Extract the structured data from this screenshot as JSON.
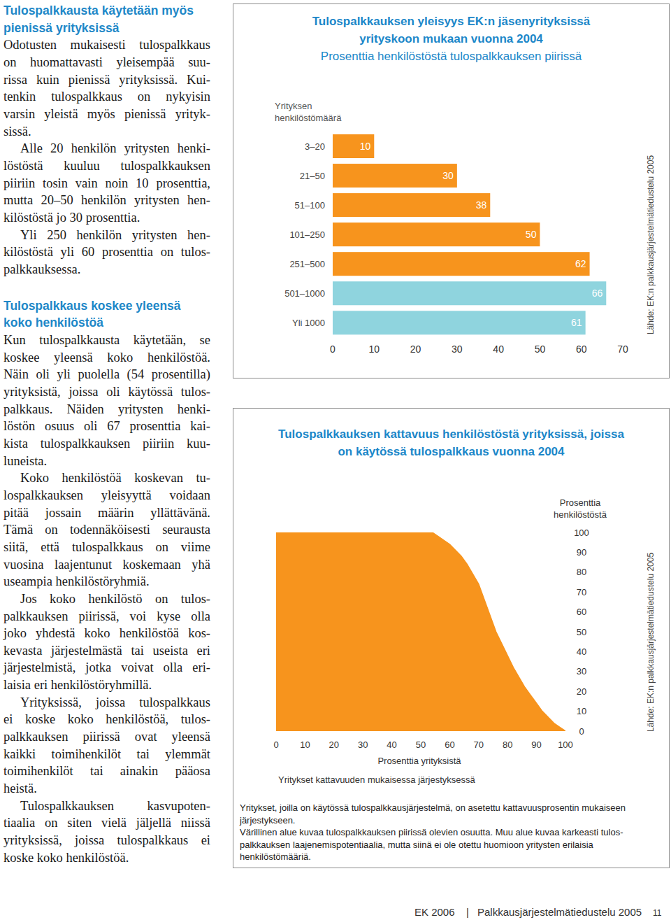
{
  "article": {
    "sections": [
      {
        "heading": [
          "Tulospalkkausta käytetään myös",
          "pienissä yrityksissä"
        ],
        "paragraphs": [
          {
            "lines": [
              "Odotusten mukaisesti tulospalkkaus",
              "on huomattavasti yleisempää suu-",
              "rissa kuin pienissä yrityksissä. Kui-",
              "tenkin tulospalkkaus on nykyisin",
              "varsin yleistä myös pienissä yrityk-",
              "sissä."
            ]
          },
          {
            "lines": [
              "Alle 20 henkilön yritysten henki-",
              "löstöstä kuuluu tulospalkkauksen",
              "piiriin tosin vain noin 10 prosenttia,",
              "mutta 20–50 henkilön yritysten hen-",
              "kilöstöstä jo 30 prosenttia."
            ]
          },
          {
            "lines": [
              "Yli 250 henkilön yritysten hen-",
              "kilöstöstä yli 60 prosenttia on tulos-",
              "palkkauksessa."
            ]
          }
        ]
      },
      {
        "heading": [
          "Tulospalkkaus koskee yleensä",
          "koko henkilöstöä"
        ],
        "paragraphs": [
          {
            "lines": [
              "Kun tulospalkkausta käytetään, se",
              "koskee yleensä koko henkilöstöä.",
              "Näin oli yli puolella (54 prosentilla)",
              "yrityksistä, joissa oli käytössä tulos-",
              "palkkaus. Näiden yritysten henki-",
              "löstön osuus oli 67 prosenttia kai-",
              "kista tulospalkkauksen piiriin kuu-",
              "luneista."
            ]
          },
          {
            "lines": [
              "Koko henkilöstöä koskevan tu-",
              "lospalkkauksen yleisyyttä voidaan",
              "pitää jossain määrin yllättävänä.",
              "Tämä on todennäköisesti seurausta",
              "siitä, että tulospalkkaus on viime",
              "vuosina laajentunut koskemaan yhä",
              "useampia henkilöstöryhmiä."
            ]
          },
          {
            "lines": [
              "Jos koko henkilöstö on tulos-",
              "palkkauksen piirissä, voi kyse olla",
              "joko yhdestä koko henkilöstöä kos-",
              "kevasta järjestelmästä tai useista eri",
              "järjestelmistä, jotka voivat olla eri-",
              "laisia eri henkilöstöryhmillä."
            ]
          },
          {
            "lines": [
              "Yrityksissä, joissa tulospalkkaus",
              "ei koske koko henkilöstöä, tulos-",
              "palkkauksen piirissä ovat yleensä",
              "kaikki toimihenkilöt tai ylemmät",
              "toimihenkilöt tai ainakin pääosa",
              "heistä."
            ]
          },
          {
            "lines": [
              "Tulospalkkauksen kasvupoten-",
              "tiaalia on siten vielä jäljellä niissä",
              "yrityksissä, joissa tulospalkkaus ei",
              "koske koko henkilöstöä."
            ]
          }
        ]
      }
    ]
  },
  "chart_data": [
    {
      "type": "bar",
      "orientation": "horizontal",
      "title": "Tulospalkkauksen yleisyys EK:n jäsenyrityksissä yrityskoon mukaan vuonna 2004",
      "subtitle": "Prosenttia henkilöstöstä tulospalkkauksen piirissä",
      "ylabel": "Yrityksen henkilöstömäärä",
      "source": "Lähde: EK:n palkkausjärjestelmätiedustelu 2005",
      "categories": [
        "3–20",
        "21–50",
        "51–100",
        "101–250",
        "251–500",
        "501–1000",
        "Yli 1000"
      ],
      "values": [
        10,
        30,
        38,
        50,
        62,
        66,
        61
      ],
      "colors": [
        "#f7941d",
        "#f7941d",
        "#f7941d",
        "#f7941d",
        "#f7941d",
        "#8fd4de",
        "#8fd4de"
      ],
      "xlim": [
        0,
        70
      ],
      "xticks": [
        0,
        10,
        20,
        30,
        40,
        50,
        60,
        70
      ],
      "data_labels": true,
      "grid": false
    },
    {
      "type": "area",
      "title": "Tulospalkkauksen kattavuus henkilöstöstä yrityksissä, joissa on käytössä tulospalkkaus vuonna 2004",
      "xlabel": "Prosenttia yrityksistä",
      "ylabel": "Prosenttia henkilöstöstä",
      "annotations": [
        "Yritykset kattavuuden mukaisessa järjestyksessä"
      ],
      "notes": [
        "Yritykset, joilla on käytössä tulospalkkausjärjestelmä, on asetettu kattavuusprosentin mukaiseen",
        "järjestykseen.",
        "Värillinen alue kuvaa tulospalkkauksen piirissä olevien osuutta. Muu alue kuvaa karkeasti tulos-",
        "palkkauksen laajenemispotentiaalia, mutta siinä ei ole otettu huomioon yritysten erilaisia",
        "henkilöstömääriä."
      ],
      "source": "Lähde: EK:n palkkausjärjestelmätiedustelu 2005",
      "x": [
        0,
        54,
        56,
        58,
        60,
        62,
        64,
        66,
        68,
        70,
        72,
        74,
        76,
        78,
        80,
        82,
        84,
        86,
        88,
        90,
        92,
        94,
        96,
        98,
        100
      ],
      "values": [
        100,
        100,
        98,
        96,
        94,
        91,
        88,
        84,
        79,
        74,
        66,
        58,
        50,
        44,
        38,
        32,
        27,
        22,
        18,
        14,
        10,
        7,
        4,
        2,
        0
      ],
      "color": "#f7941d",
      "xlim": [
        0,
        100
      ],
      "ylim": [
        0,
        100
      ],
      "xticks": [
        0,
        10,
        20,
        30,
        40,
        50,
        60,
        70,
        80,
        90,
        100
      ],
      "yticks": [
        0,
        10,
        20,
        30,
        40,
        50,
        60,
        70,
        80,
        90,
        100
      ],
      "grid": false
    }
  ],
  "footer": {
    "items": [
      "EK 2006",
      "|",
      "Palkkausjärjestelmätiedustelu 2005",
      "11"
    ]
  }
}
